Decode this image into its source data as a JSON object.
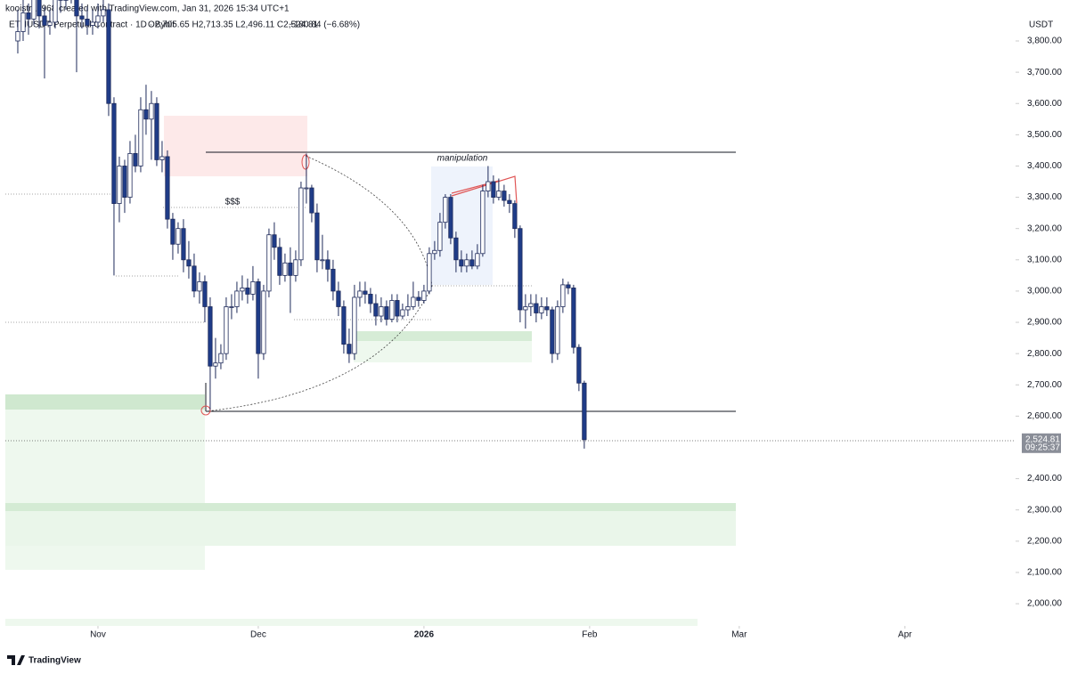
{
  "header": {
    "credit": "kooistra1968 created with TradingView.com, Jan 31, 2026 15:34 UTC+1",
    "symbol": "ETHUSDT Perpetual Contract · 1D · Bybit",
    "ohlc": "O2,705.65 H2,713.35 L2,496.11 C2,524.81",
    "change": "−180.84 (−6.68%)"
  },
  "chart_data": {
    "type": "candlestick",
    "currency": "USDT",
    "last_price_label": "2,524.81",
    "countdown": "09:25:37",
    "annotations": [
      "manipulation",
      "$$$"
    ],
    "bull_color": "#ffffff",
    "bear_color": "#1f3c88",
    "outline_color": "#1e2a5a",
    "open": [
      3800,
      3830,
      3890,
      3870,
      3980,
      3880,
      3850,
      3860,
      3940,
      3930,
      3950,
      3960,
      3880,
      3870,
      3850,
      3860,
      3880,
      3900,
      3600,
      3280,
      3400,
      3300,
      3440,
      3400,
      3580,
      3550,
      3600,
      3420,
      3430,
      3230,
      3150,
      3200,
      3100,
      3080,
      3000,
      3030,
      2950,
      2760,
      2770,
      2800,
      2950,
      2950,
      3000,
      3010,
      2990,
      3030,
      2800,
      3000,
      3180,
      3140,
      3050,
      3090,
      3050,
      3100,
      3330,
      3330,
      3250,
      3100,
      3100,
      3070,
      3000,
      2950,
      2830,
      2800,
      2980,
      3000,
      2990,
      2960,
      2920,
      2950,
      2910,
      2970,
      2920,
      2940,
      2950,
      2980,
      2970,
      3000,
      3120,
      3130,
      3220,
      3300,
      3170,
      3100,
      3080,
      3100,
      3080,
      3120,
      3320,
      3350,
      3300,
      3320,
      3290,
      3280,
      3200,
      2940,
      2950,
      2960,
      2930,
      2950,
      2940,
      2800,
      2950,
      3020,
      3010,
      2820,
      2705.65
    ],
    "high": [
      3900,
      3940,
      3920,
      4020,
      3990,
      3910,
      3900,
      3970,
      3980,
      4000,
      4010,
      3990,
      3920,
      3910,
      3900,
      3920,
      3950,
      3920,
      3620,
      3430,
      3420,
      3480,
      3500,
      3620,
      3660,
      3640,
      3620,
      3480,
      3450,
      3250,
      3220,
      3230,
      3160,
      3120,
      3060,
      3050,
      2980,
      2850,
      2830,
      2980,
      2990,
      3030,
      3050,
      3040,
      3080,
      3040,
      3020,
      3200,
      3220,
      3170,
      3120,
      3140,
      3130,
      3350,
      3440,
      3340,
      3280,
      3180,
      3130,
      3100,
      3030,
      2970,
      2880,
      3020,
      3030,
      3030,
      3010,
      2990,
      2980,
      2970,
      2990,
      2990,
      2960,
      2990,
      3030,
      3000,
      3020,
      3140,
      3160,
      3250,
      3310,
      3310,
      3190,
      3130,
      3120,
      3130,
      3150,
      3340,
      3400,
      3370,
      3360,
      3340,
      3310,
      3290,
      3210,
      2990,
      2990,
      2990,
      2980,
      2980,
      2950,
      2970,
      3040,
      3030,
      3020,
      2830,
      2713.35
    ],
    "low": [
      3760,
      3800,
      3820,
      3850,
      3840,
      3680,
      3820,
      3840,
      3890,
      3900,
      3920,
      3700,
      3840,
      3820,
      3820,
      3840,
      3860,
      3560,
      3050,
      3220,
      3250,
      3280,
      3380,
      3380,
      3500,
      3420,
      3400,
      3380,
      3200,
      3100,
      3120,
      3060,
      3040,
      2980,
      2960,
      2900,
      2620,
      2720,
      2750,
      2780,
      2910,
      2930,
      2970,
      2960,
      2970,
      2720,
      2780,
      2980,
      3100,
      3020,
      3030,
      2930,
      3030,
      3080,
      3280,
      3220,
      3060,
      3070,
      3030,
      2970,
      2920,
      2800,
      2770,
      2780,
      2950,
      2960,
      2930,
      2890,
      2900,
      2890,
      2900,
      2900,
      2910,
      2920,
      2940,
      2950,
      2960,
      2990,
      3100,
      3110,
      3200,
      3150,
      3060,
      3060,
      3060,
      3070,
      3070,
      3110,
      3300,
      3280,
      3290,
      3270,
      3250,
      3170,
      2900,
      2880,
      2920,
      2900,
      2910,
      2920,
      2770,
      2780,
      2930,
      2990,
      2800,
      2680,
      2496.11
    ],
    "close": [
      3830,
      3890,
      3870,
      3980,
      3880,
      3850,
      3860,
      3940,
      3930,
      3950,
      3960,
      3880,
      3870,
      3850,
      3860,
      3880,
      3900,
      3600,
      3280,
      3400,
      3300,
      3440,
      3400,
      3580,
      3550,
      3600,
      3420,
      3430,
      3230,
      3150,
      3200,
      3100,
      3080,
      3000,
      3030,
      2950,
      2760,
      2770,
      2800,
      2950,
      2950,
      3000,
      3010,
      2990,
      3030,
      2800,
      3000,
      3180,
      3140,
      3050,
      3090,
      3050,
      3100,
      3330,
      3330,
      3250,
      3100,
      3100,
      3070,
      3000,
      2950,
      2830,
      2800,
      2980,
      3000,
      2990,
      2960,
      2920,
      2950,
      2910,
      2970,
      2920,
      2940,
      2950,
      2980,
      2970,
      3000,
      3120,
      3130,
      3220,
      3300,
      3170,
      3100,
      3080,
      3100,
      3080,
      3120,
      3320,
      3350,
      3300,
      3320,
      3290,
      3280,
      3200,
      2940,
      2950,
      2960,
      2930,
      2950,
      2940,
      2800,
      2950,
      3020,
      3010,
      2820,
      2705.65,
      2524.81
    ],
    "last_price": 2524.81,
    "xlim": [
      -2.33,
      186.7
    ],
    "xticks": [
      {
        "value": 15,
        "label": "Nov"
      },
      {
        "value": 45,
        "label": "Dec"
      },
      {
        "value": 76,
        "label": "2026"
      },
      {
        "value": 107,
        "label": "Feb"
      },
      {
        "value": 135,
        "label": "Mar"
      },
      {
        "value": 166,
        "label": "Apr"
      }
    ],
    "ylim": [
      1929,
      3931
    ],
    "yticks": [
      {
        "value": 2000,
        "label": "2,000.00"
      },
      {
        "value": 2100,
        "label": "2,100.00"
      },
      {
        "value": 2200,
        "label": "2,200.00"
      },
      {
        "value": 2300,
        "label": "2,300.00"
      },
      {
        "value": 2400,
        "label": "2,400.00"
      },
      {
        "value": 2600,
        "label": "2,600.00"
      },
      {
        "value": 2700,
        "label": "2,700.00"
      },
      {
        "value": 2800,
        "label": "2,800.00"
      },
      {
        "value": 2900,
        "label": "2,900.00"
      },
      {
        "value": 3000,
        "label": "3,000.00"
      },
      {
        "value": 3100,
        "label": "3,100.00"
      },
      {
        "value": 3200,
        "label": "3,200.00"
      },
      {
        "value": 3300,
        "label": "3,300.00"
      },
      {
        "value": 3400,
        "label": "3,400.00"
      },
      {
        "value": 3500,
        "label": "3,500.00"
      },
      {
        "value": 3600,
        "label": "3,600.00"
      },
      {
        "value": 3700,
        "label": "3,700.00"
      },
      {
        "value": 3800,
        "label": "3,800.00"
      }
    ]
  },
  "footer": {
    "brand": "TradingView"
  }
}
